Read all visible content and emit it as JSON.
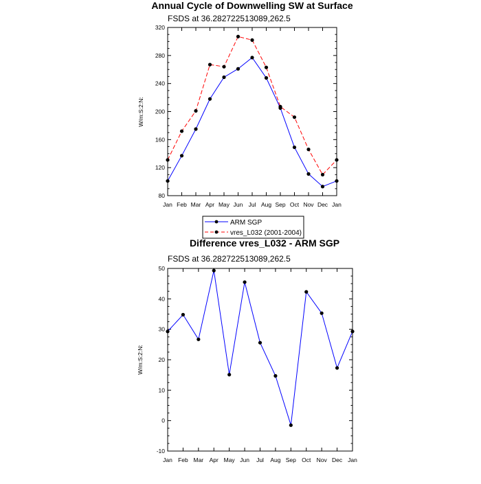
{
  "chart_data": [
    {
      "type": "line",
      "title": "Annual Cycle of Downwelling SW at Surface",
      "subtitle": "FSDS at 36.282722513089,262.5",
      "ylabel": "W/m:S:2:N:",
      "xlabel": "",
      "categories": [
        "Jan",
        "Feb",
        "Mar",
        "Apr",
        "May",
        "Jun",
        "Jul",
        "Aug",
        "Sep",
        "Oct",
        "Nov",
        "Dec",
        "Jan"
      ],
      "ylim": [
        80,
        320
      ],
      "yticks": [
        80,
        120,
        160,
        200,
        240,
        280,
        320
      ],
      "grid": false,
      "legend_placement": "below",
      "series": [
        {
          "name": "ARM SGP",
          "color": "#0000ff",
          "dash": "solid",
          "values": [
            101,
            137,
            175,
            218,
            249,
            261,
            277,
            248,
            205,
            149,
            111,
            93,
            101
          ]
        },
        {
          "name": "vres_L032 (2001-2004)",
          "color": "#ff0000",
          "dash": "dashed",
          "values": [
            131,
            172,
            201,
            267,
            264,
            307,
            302,
            263,
            207,
            192,
            146,
            110,
            131
          ]
        }
      ]
    },
    {
      "type": "line",
      "title": "Difference vres_L032 - ARM SGP",
      "subtitle": "FSDS at 36.282722513089,262.5",
      "ylabel": "W/m:S:2:N:",
      "xlabel": "",
      "categories": [
        "Jan",
        "Feb",
        "Mar",
        "Apr",
        "May",
        "Jun",
        "Jul",
        "Aug",
        "Sep",
        "Oct",
        "Nov",
        "Dec",
        "Jan"
      ],
      "ylim": [
        -10,
        50
      ],
      "yticks": [
        -10,
        0,
        10,
        20,
        30,
        40,
        50
      ],
      "grid": false,
      "series": [
        {
          "color": "#0000ff",
          "dash": "solid",
          "values": [
            29.3,
            34.8,
            26.7,
            49.3,
            15.1,
            45.5,
            25.6,
            14.7,
            -1.5,
            42.3,
            35.3,
            17.3,
            29.3
          ]
        }
      ]
    }
  ]
}
